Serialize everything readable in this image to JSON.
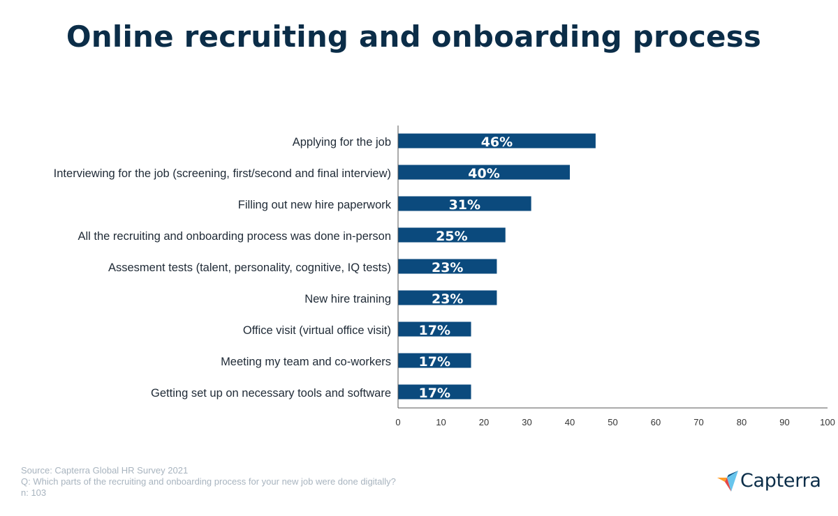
{
  "title": "Online recruiting and onboarding process",
  "chart_data": {
    "type": "bar",
    "orientation": "horizontal",
    "categories": [
      "Applying for the job",
      "Interviewing for the job (screening, first/second and final interview)",
      "Filling out new hire paperwork",
      "All the recruiting and onboarding process was done in-person",
      "Assesment tests (talent, personality, cognitive, IQ tests)",
      "New hire training",
      "Office visit (virtual office visit)",
      "Meeting my team and co-workers",
      "Getting set up on necessary tools and software"
    ],
    "values": [
      46,
      40,
      31,
      25,
      23,
      23,
      17,
      17,
      17
    ],
    "data_labels": [
      "46%",
      "40%",
      "31%",
      "25%",
      "23%",
      "23%",
      "17%",
      "17%",
      "17%"
    ],
    "xlim": [
      0,
      100
    ],
    "xticks": [
      0,
      10,
      20,
      30,
      40,
      50,
      60,
      70,
      80,
      90,
      100
    ],
    "grid": false,
    "bar_color": "#0b4a7d",
    "label_color": "#ffffff"
  },
  "footer": {
    "source": "Source: Capterra Global HR Survey 2021",
    "question": "Q: Which parts of the recruiting and onboarding process for your new job were done digitally?",
    "n": "n: 103"
  },
  "logo": {
    "text": "Capterra",
    "icon": "capterra-logo-icon"
  }
}
